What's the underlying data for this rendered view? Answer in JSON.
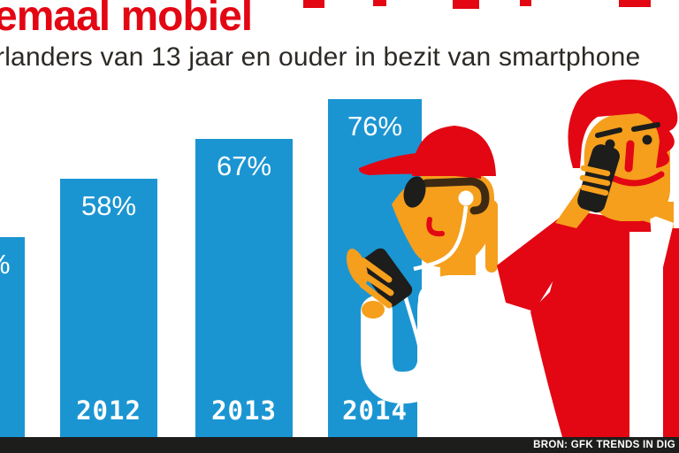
{
  "header": {
    "title": "emaal mobiel",
    "subtitle": "rlanders van 13 jaar en ouder in bezit van smartphone"
  },
  "chart_data": {
    "type": "bar",
    "title": "emaal mobiel",
    "subtitle": "rlanders van 13 jaar en ouder in bezit van smartphone",
    "categories": [
      "",
      "2012",
      "2013",
      "2014"
    ],
    "values": [
      45,
      58,
      67,
      76
    ],
    "value_labels": [
      "%",
      "58%",
      "67%",
      "76%"
    ],
    "unit": "percent of Dutch people 13+ owning a smartphone",
    "ylim": [
      0,
      100
    ],
    "grid": false,
    "legend": false,
    "bar_color": "#1B95D2",
    "bar_label_color": "#FFFFFF",
    "source": "BRON: GFK TRENDS IN DIG"
  },
  "source_bar": {
    "label": "BRON: GFK TRENDS IN DIG"
  },
  "figures": [
    {
      "name": "teen-with-red-cap-sunglasses-earphones-looking-at-smartphone"
    },
    {
      "name": "man-in-red-coat-talking-on-smartphone"
    }
  ],
  "colors": {
    "red": "#E30613",
    "blue": "#1B95D2",
    "skin": "#F59F1D",
    "dark": "#1D1D1B",
    "brown": "#3E2A12",
    "text": "#2D2A26"
  }
}
